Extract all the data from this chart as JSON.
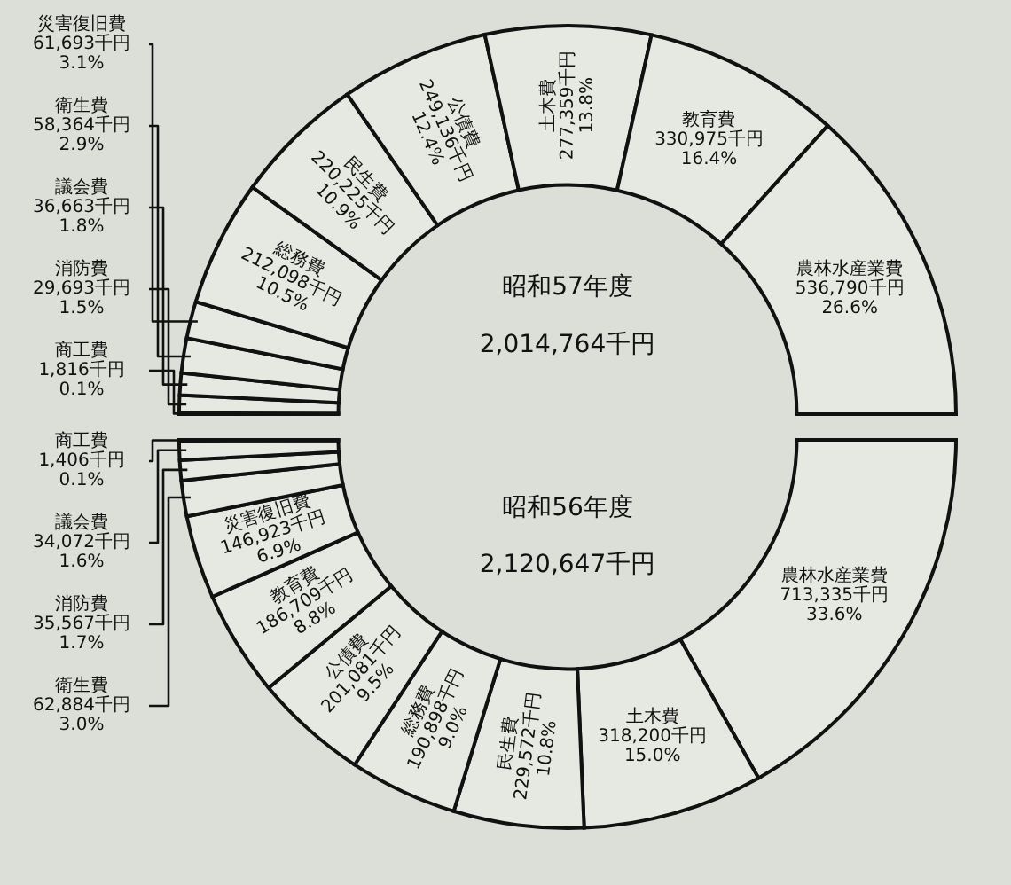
{
  "chart_data": [
    {
      "type": "donut",
      "title": "昭和57年度",
      "subtitle": "2,014,764千円",
      "categories": [
        "商工費",
        "消防費",
        "議会費",
        "衛生費",
        "災害復旧費",
        "総務費",
        "民生費",
        "公債費",
        "土木費",
        "教育費",
        "農林水産業費"
      ],
      "values": [
        1816,
        29693,
        36663,
        58364,
        61693,
        212098,
        220225,
        249136,
        277359,
        330975,
        536790
      ],
      "value_labels": [
        "1,816千円\n0.1%",
        "29,693千円\n1.5%",
        "36,663千円\n1.8%",
        "58,364千円\n2.9%",
        "61,693千円\n3.1%",
        "212,098千円\n10.5%",
        "220,225千円\n10.9%",
        "249,136千円\n12.4%",
        "277,359千円\n13.8%",
        "330,975千円\n16.4%",
        "536,790千円\n26.6%"
      ],
      "colors": [
        "#e6e8e2",
        "#e6e8e2",
        "#e6e8e2",
        "#e6e8e2",
        "#e6e8e2",
        "#e6e8e2",
        "#e6e8e2",
        "#e6e8e2",
        "#e6e8e2",
        "#e6e8e2",
        "#e6e8e2"
      ]
    },
    {
      "type": "donut",
      "title": "昭和56年度",
      "subtitle": "2,120,647千円",
      "categories": [
        "農林水産業費",
        "土木費",
        "民生費",
        "総務費",
        "公債費",
        "教育費",
        "災害復旧費",
        "衛生費",
        "消防費",
        "議会費",
        "商工費"
      ],
      "values": [
        713335,
        318200,
        229572,
        190898,
        201081,
        186709,
        146923,
        62884,
        35567,
        34072,
        1406
      ],
      "value_labels": [
        "713,335千円\n33.6%",
        "318,200千円\n15.0%",
        "229,572千円\n10.8%",
        "190,898千円\n9.0%",
        "201,081千円\n9.5%",
        "186,709千円\n8.8%",
        "146,923千円\n6.9%",
        "62,884千円\n3.0%",
        "35,567千円\n1.7%",
        "34,072千円\n1.6%",
        "1,406千円\n0.1%"
      ],
      "colors": [
        "#e6e8e2",
        "#e6e8e2",
        "#e6e8e2",
        "#e6e8e2",
        "#e6e8e2",
        "#e6e8e2",
        "#e6e8e2",
        "#e6e8e2",
        "#e6e8e2",
        "#e6e8e2",
        "#e6e8e2"
      ]
    }
  ]
}
